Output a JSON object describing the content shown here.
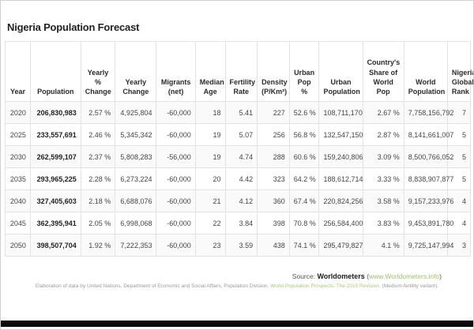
{
  "page": {
    "title": "Nigeria Population Forecast"
  },
  "table": {
    "headers": [
      "Year",
      "Population",
      "Yearly % Change",
      "Yearly Change",
      "Migrants (net)",
      "Median Age",
      "Fertility Rate",
      "Density (P/Km²)",
      "Urban Pop %",
      "Urban Population",
      "Country's Share of World Pop",
      "World Population",
      "Nigeria Global Rank"
    ],
    "rows": [
      [
        "2020",
        "206,830,983",
        "2.57 %",
        "4,925,804",
        "-60,000",
        "18",
        "5.41",
        "227",
        "52.6 %",
        "108,711,170",
        "2.67 %",
        "7,758,156,792",
        "7"
      ],
      [
        "2025",
        "233,557,691",
        "2.46 %",
        "5,345,342",
        "-60,000",
        "19",
        "5.07",
        "256",
        "56.8 %",
        "132,547,150",
        "2.87 %",
        "8,141,661,007",
        "5"
      ],
      [
        "2030",
        "262,599,107",
        "2.37 %",
        "5,808,283",
        "-56,000",
        "19",
        "4.74",
        "288",
        "60.6 %",
        "159,240,806",
        "3.09 %",
        "8,500,766,052",
        "5"
      ],
      [
        "2035",
        "293,965,225",
        "2.28 %",
        "6,273,224",
        "-60,000",
        "20",
        "4.42",
        "323",
        "64.2 %",
        "188,612,714",
        "3.33 %",
        "8,838,907,877",
        "5"
      ],
      [
        "2040",
        "327,405,603",
        "2.18 %",
        "6,688,076",
        "-60,000",
        "21",
        "4.12",
        "360",
        "67.4 %",
        "220,824,256",
        "3.58 %",
        "9,157,233,976",
        "4"
      ],
      [
        "2045",
        "362,395,941",
        "2.05 %",
        "6,998,068",
        "-60,000",
        "22",
        "3.84",
        "398",
        "70.8 %",
        "256,584,400",
        "3.83 %",
        "9,453,891,780",
        "4"
      ],
      [
        "2050",
        "398,507,704",
        "1.92 %",
        "7,222,353",
        "-60,000",
        "23",
        "3.59",
        "438",
        "74.1 %",
        "295,479,827",
        "4.1 %",
        "9,725,147,994",
        "3"
      ]
    ]
  },
  "footer": {
    "source_prefix": "Source: ",
    "source_name": "Worldometers",
    "paren_open": "(",
    "source_link": "www.Worldometers.info",
    "paren_close": ")",
    "elaboration_plain1": "Elaboration of data by United Nations, Department of Economic and Social Affairs, Population Division. ",
    "elaboration_link": "World Population Prospects: The 2015 Revision.",
    "elaboration_plain2": " (Medium-fertility variant)."
  },
  "colors": {
    "link_green": "#9dbd72",
    "text_dark": "#222222",
    "table_border": "#e3e3e3",
    "bottom_bar": "#0b0b0b"
  }
}
